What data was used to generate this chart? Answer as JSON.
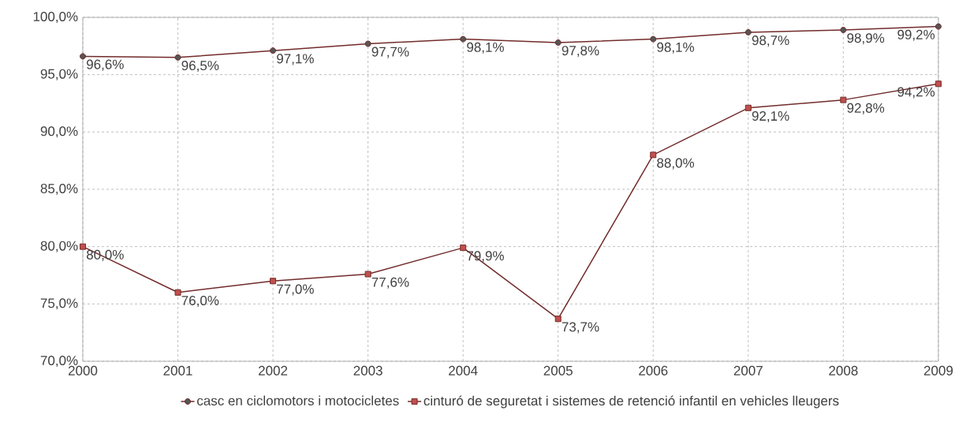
{
  "chart_data": {
    "type": "line",
    "x": [
      2000,
      2001,
      2002,
      2003,
      2004,
      2005,
      2006,
      2007,
      2008,
      2009
    ],
    "xlim": [
      2000,
      2009
    ],
    "xticks": [
      2000,
      2001,
      2002,
      2003,
      2004,
      2005,
      2006,
      2007,
      2008,
      2009
    ],
    "ylim": [
      70,
      100
    ],
    "yticks": [
      {
        "value": 70,
        "label": "70,0%"
      },
      {
        "value": 75,
        "label": "75,0%"
      },
      {
        "value": 80,
        "label": "80,0%"
      },
      {
        "value": 85,
        "label": "85,0%"
      },
      {
        "value": 90,
        "label": "90,0%"
      },
      {
        "value": 95,
        "label": "95,0%"
      },
      {
        "value": 100,
        "label": "100,0%"
      }
    ],
    "grid": true,
    "legend": "bottom",
    "series": [
      {
        "name": "casc en ciclomotors i motocicletes",
        "color": "#722b2b",
        "marker": "circle",
        "values": [
          96.6,
          96.5,
          97.1,
          97.7,
          98.1,
          97.8,
          98.1,
          98.7,
          98.9,
          99.2
        ],
        "value_labels": [
          "96,6%",
          "96,5%",
          "97,1%",
          "97,7%",
          "98,1%",
          "97,8%",
          "98,1%",
          "98,7%",
          "98,9%",
          "99,2%"
        ]
      },
      {
        "name": "cinturó de seguretat i sistemes de retenció infantil en vehicles lleugers",
        "color": "#722b2b",
        "marker": "square",
        "values": [
          80.0,
          76.0,
          77.0,
          77.6,
          79.9,
          73.7,
          88.0,
          92.1,
          92.8,
          94.2
        ],
        "value_labels": [
          "80,0%",
          "76,0%",
          "77,0%",
          "77,6%",
          "79,9%",
          "73,7%",
          "88,0%",
          "92,1%",
          "92,8%",
          "94,2%"
        ]
      }
    ]
  }
}
